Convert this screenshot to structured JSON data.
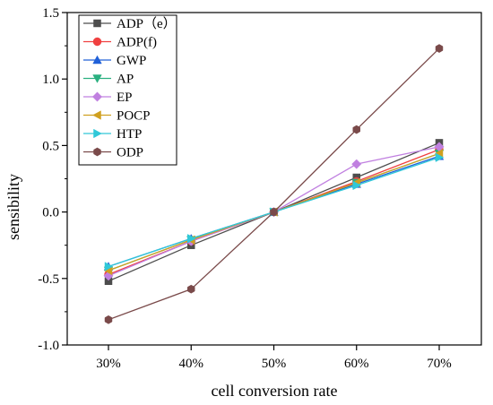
{
  "chart_data": {
    "type": "line",
    "xlabel": "cell conversion rate",
    "ylabel": "sensibility",
    "categories": [
      "30%",
      "40%",
      "50%",
      "60%",
      "70%"
    ],
    "ylim": [
      -1.0,
      1.5
    ],
    "yticks": [
      "-1.0",
      "-0.5",
      "0.0",
      "0.5",
      "1.0",
      "1.5"
    ],
    "legend_position": "top-left",
    "grid": false,
    "series": [
      {
        "name": "ADP（e）",
        "color": "#4d4d4d",
        "marker": "square",
        "values": [
          -0.52,
          -0.25,
          0.0,
          0.26,
          0.52
        ]
      },
      {
        "name": "ADP(f)",
        "color": "#f04040",
        "marker": "circle",
        "values": [
          -0.47,
          -0.22,
          0.0,
          0.23,
          0.47
        ]
      },
      {
        "name": "GWP",
        "color": "#2060d8",
        "marker": "triangle-up",
        "values": [
          -0.41,
          -0.2,
          0.0,
          0.21,
          0.42
        ]
      },
      {
        "name": "AP",
        "color": "#2ab080",
        "marker": "triangle-down",
        "values": [
          -0.44,
          -0.21,
          0.0,
          0.22,
          0.44
        ]
      },
      {
        "name": "EP",
        "color": "#c080e0",
        "marker": "diamond",
        "values": [
          -0.48,
          -0.22,
          0.0,
          0.36,
          0.49
        ]
      },
      {
        "name": "POCP",
        "color": "#d0a020",
        "marker": "triangle-left",
        "values": [
          -0.44,
          -0.21,
          0.0,
          0.22,
          0.44
        ]
      },
      {
        "name": "HTP",
        "color": "#30c8d8",
        "marker": "triangle-right",
        "values": [
          -0.41,
          -0.2,
          0.0,
          0.2,
          0.41
        ]
      },
      {
        "name": "ODP",
        "color": "#7a4a4a",
        "marker": "hexagon",
        "values": [
          -0.81,
          -0.58,
          0.0,
          0.62,
          1.23
        ]
      }
    ]
  }
}
